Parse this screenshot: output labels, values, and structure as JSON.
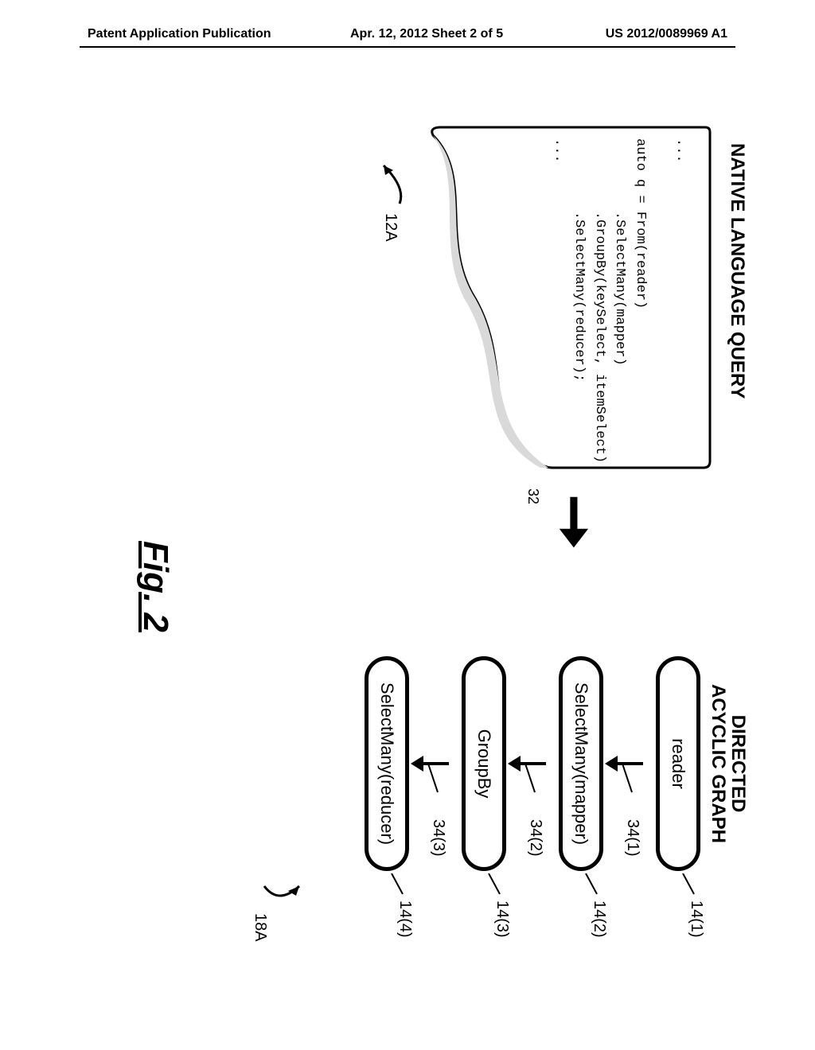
{
  "header": {
    "left": "Patent Application Publication",
    "center": "Apr. 12, 2012  Sheet 2 of 5",
    "right": "US 2012/0089969 A1"
  },
  "nlq": {
    "title": "NATIVE LANGUAGE QUERY",
    "code": "...\n\nauto q = From(reader)\n         .SelectMany(mapper)\n         .GroupBy(keySelect, itemSelect)\n         .SelectMany(reducer);\n...",
    "panel_border_color": "#000000",
    "panel_border_width": 3,
    "ref": "12A"
  },
  "arrow": {
    "ref": "32",
    "stroke": "#000000",
    "stroke_width": 10
  },
  "dag": {
    "title_line1": "DIRECTED",
    "title_line2": "ACYCLIC GRAPH",
    "nodes": [
      {
        "label": "reader",
        "ref": "14(1)"
      },
      {
        "label": "SelectMany(mapper)",
        "ref": "14(2)"
      },
      {
        "label": "GroupBy",
        "ref": "14(3)"
      },
      {
        "label": "SelectMany(reducer)",
        "ref": "14(4)"
      }
    ],
    "edges": [
      {
        "ref": "34(1)"
      },
      {
        "ref": "34(2)"
      },
      {
        "ref": "34(3)"
      }
    ],
    "node_border_color": "#000000",
    "node_border_width": 5,
    "edge_stroke": "#000000",
    "edge_stroke_width": 4,
    "end_ref": "18A"
  },
  "figure_caption": "Fig. 2",
  "colors": {
    "background": "#ffffff",
    "text": "#000000"
  }
}
